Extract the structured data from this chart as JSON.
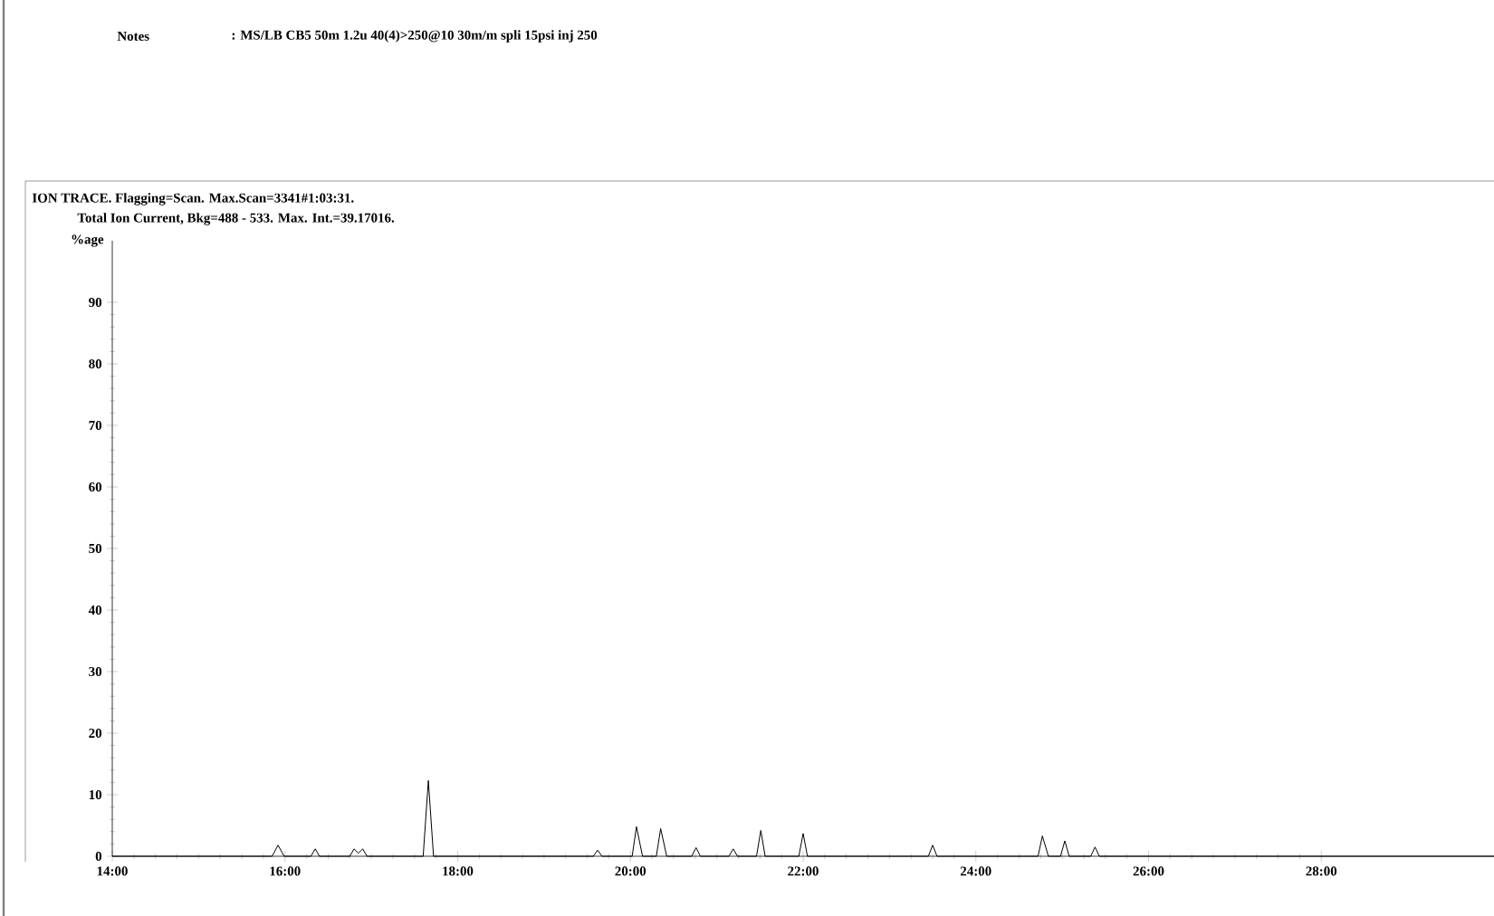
{
  "chart_data": {
    "type": "line",
    "title": "ION TRACE. Flagging=Scan. Max.Scan=3341#1:03:31.",
    "subtitle": "Total Ion Current, Bkg=488 - 533. Max. Int.=39.17016.",
    "ylabel": "%age",
    "annotations": [
      "Notes",
      ": MS/LB CB5 50m 1.2u 40(4)>250@10 30m/m spli 15psi inj 250"
    ],
    "x": [
      14.0,
      15.0,
      15.85,
      15.92,
      15.99,
      16.3,
      16.35,
      16.4,
      16.75,
      16.8,
      16.85,
      16.9,
      16.95,
      17.6,
      17.66,
      17.72,
      19.57,
      19.62,
      19.67,
      20.02,
      20.07,
      20.14,
      20.3,
      20.35,
      20.42,
      20.71,
      20.76,
      20.81,
      21.14,
      21.19,
      21.24,
      21.46,
      21.51,
      21.56,
      21.95,
      22.0,
      22.05,
      23.45,
      23.5,
      23.55,
      24.72,
      24.77,
      24.84,
      24.98,
      25.03,
      25.08,
      25.33,
      25.38,
      25.43,
      27.0,
      30.0
    ],
    "values": [
      0,
      0,
      0,
      1.8,
      0,
      0,
      1.2,
      0,
      0,
      1.2,
      0.5,
      1.2,
      0,
      0,
      12.3,
      0,
      0,
      1,
      0,
      0,
      4.8,
      0,
      0,
      4.5,
      0,
      0,
      1.4,
      0,
      0,
      1.2,
      0,
      0,
      4.2,
      0,
      0,
      3.7,
      0,
      0,
      1.8,
      0,
      0,
      3.3,
      0,
      0,
      2.5,
      0,
      0,
      1.5,
      0,
      0,
      0
    ],
    "color": "#000000",
    "line_style": "solid",
    "marker": "none",
    "xlim": [
      14,
      30
    ],
    "xticks": [
      {
        "value": 14,
        "label": "14:00"
      },
      {
        "value": 16,
        "label": "16:00"
      },
      {
        "value": 18,
        "label": "18:00"
      },
      {
        "value": 20,
        "label": "20:00"
      },
      {
        "value": 22,
        "label": "22:00"
      },
      {
        "value": 24,
        "label": "24:00"
      },
      {
        "value": 26,
        "label": "26:00"
      },
      {
        "value": 28,
        "label": "28:00"
      }
    ],
    "ylim": [
      0,
      100
    ],
    "yticks": [
      0,
      10,
      20,
      30,
      40,
      50,
      60,
      70,
      80,
      90
    ],
    "grid": false
  }
}
